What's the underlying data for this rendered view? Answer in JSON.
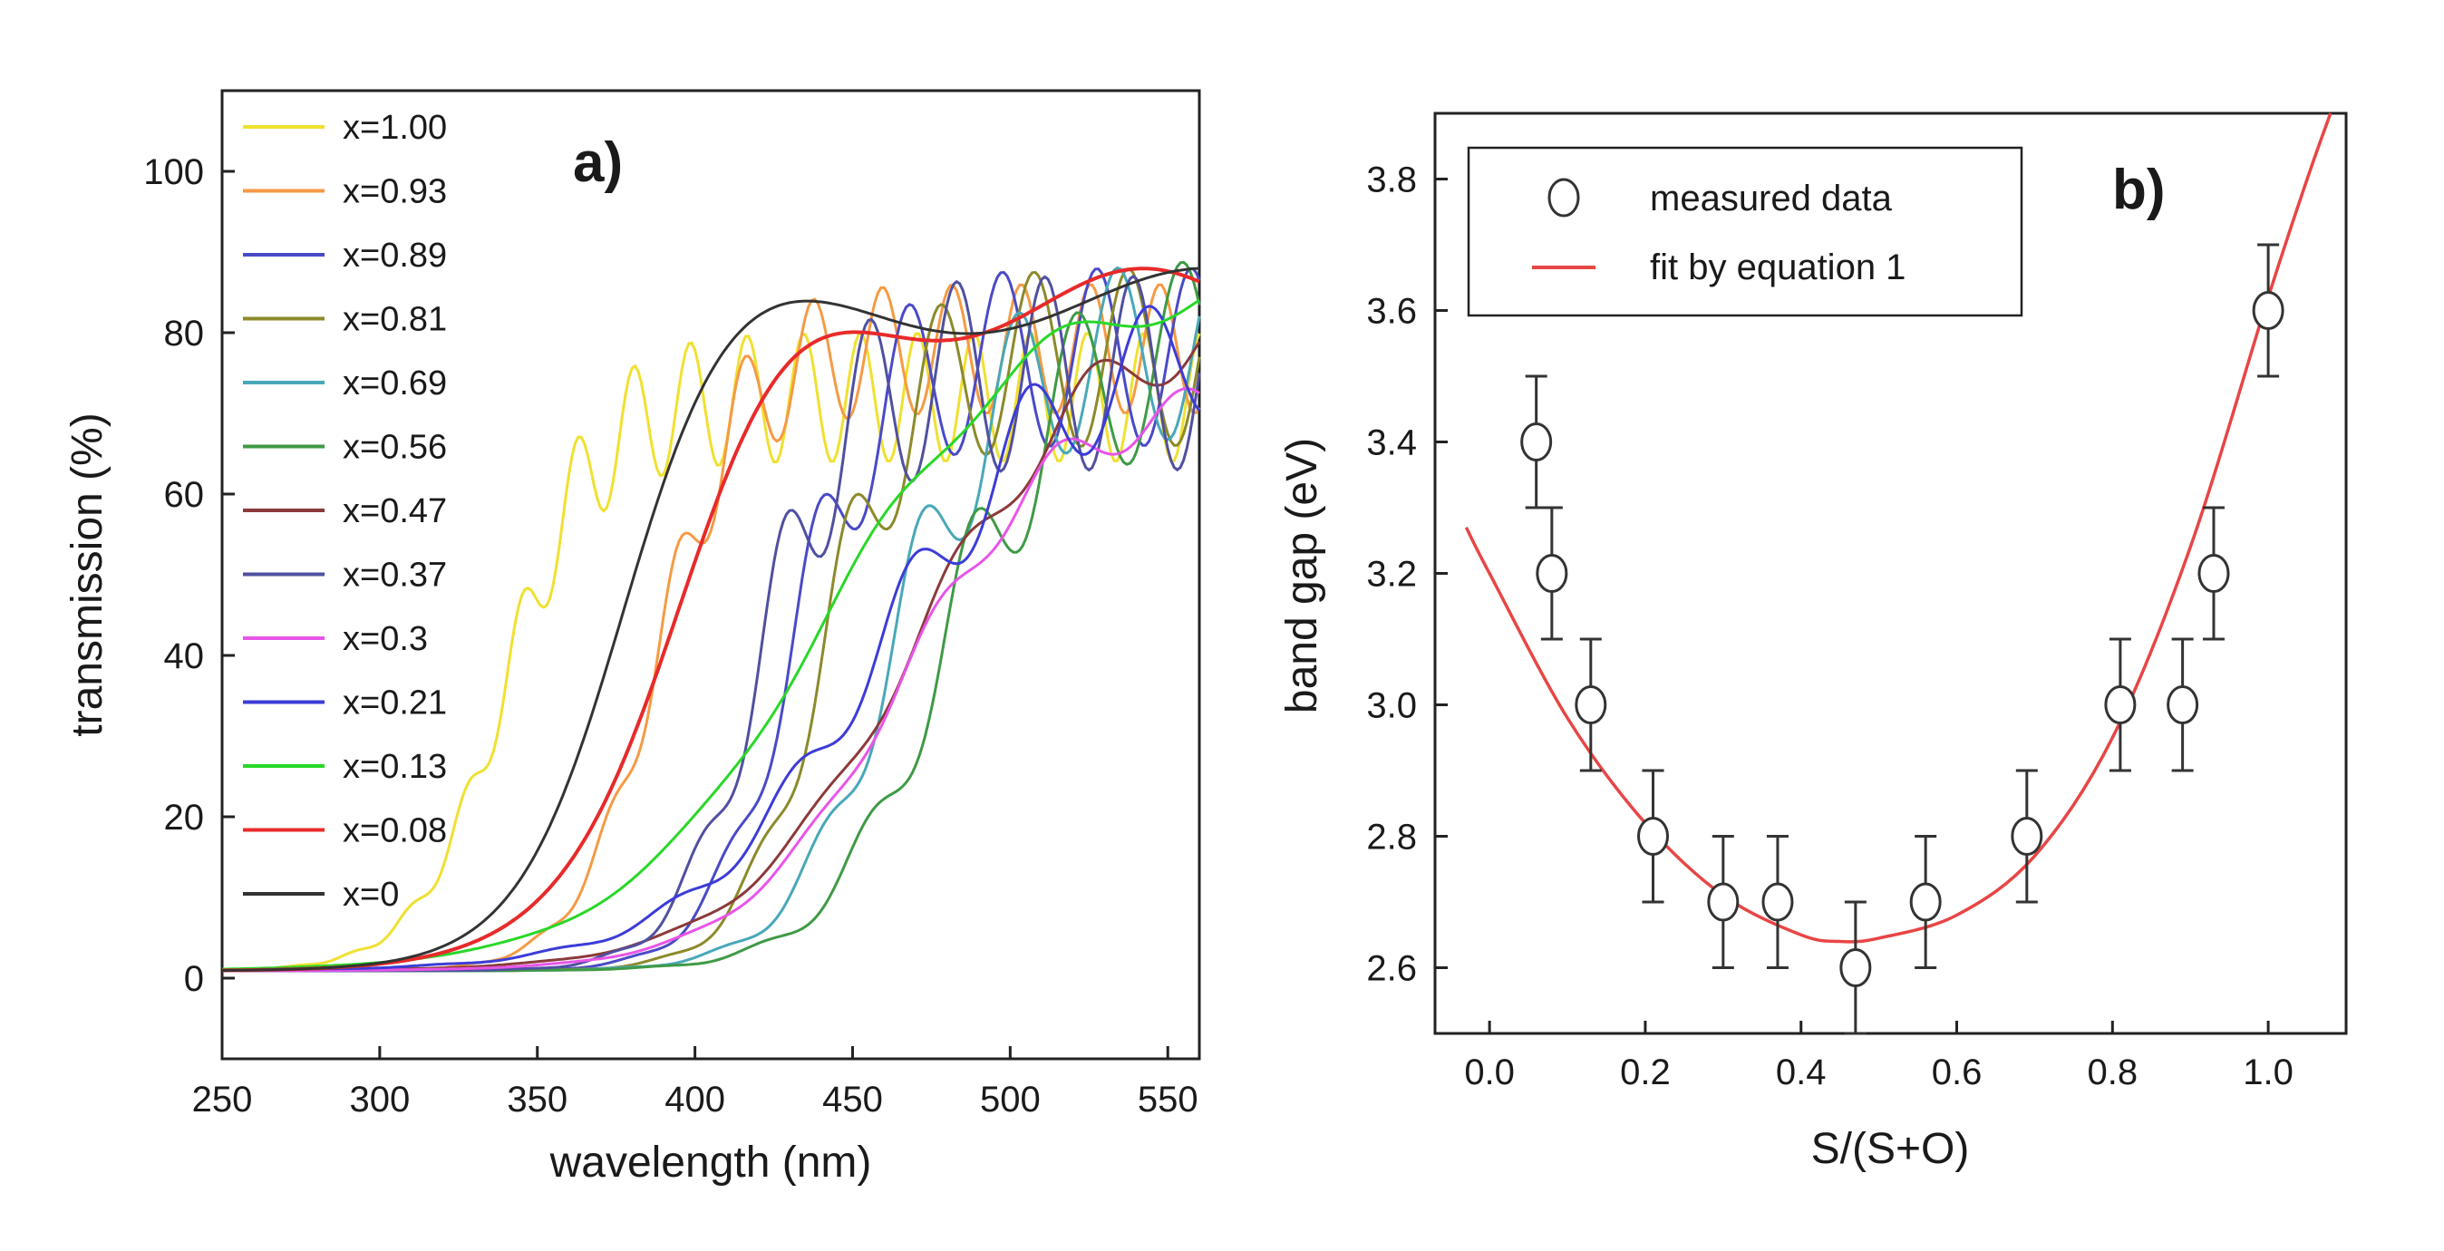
{
  "panels": {
    "a": {
      "label": "a)",
      "xlabel": "wavelength (nm)",
      "ylabel": "transmission (%)",
      "xticks": [
        "250",
        "300",
        "350",
        "400",
        "450",
        "500",
        "550"
      ],
      "yticks": [
        "0",
        "20",
        "40",
        "60",
        "80",
        "100"
      ]
    },
    "b": {
      "label": "b)",
      "xlabel": "S/(S+O)",
      "ylabel": "band gap (eV)",
      "xticks": [
        "0.0",
        "0.2",
        "0.4",
        "0.6",
        "0.8",
        "1.0"
      ],
      "yticks": [
        "2.6",
        "2.8",
        "3.0",
        "3.2",
        "3.4",
        "3.6",
        "3.8"
      ],
      "legend": {
        "measured": "measured data",
        "fit": "fit by equation 1"
      }
    }
  },
  "chart_data": [
    {
      "type": "line",
      "title": "a)",
      "xlabel": "wavelength (nm)",
      "ylabel": "transmission (%)",
      "xlim": [
        250,
        560
      ],
      "ylim": [
        -10,
        110
      ],
      "xtick_values": [
        250,
        300,
        350,
        400,
        450,
        500,
        550
      ],
      "ytick_values": [
        0,
        20,
        40,
        60,
        80,
        100
      ],
      "legend_position": "top-left",
      "series": [
        {
          "name": "x=1.00",
          "color": "#f0e030",
          "edge": 340,
          "width": 14,
          "plateau": 72,
          "fringe_amp": 8,
          "fringe_period": 18
        },
        {
          "name": "x=0.93",
          "color": "#f59a45",
          "edge": 388,
          "width": 13,
          "plateau": 78,
          "fringe_amp": 8,
          "fringe_period": 22
        },
        {
          "name": "x=0.89",
          "color": "#4a4ac8",
          "edge": 430,
          "width": 13,
          "plateau": 77,
          "fringe_amp": 11,
          "fringe_period": 30
        },
        {
          "name": "x=0.81",
          "color": "#8c8a2a",
          "edge": 440,
          "width": 13,
          "plateau": 77,
          "fringe_amp": 11,
          "fringe_period": 30
        },
        {
          "name": "x=0.69",
          "color": "#48a8b8",
          "edge": 462,
          "width": 16,
          "plateau": 78,
          "fringe_amp": 11,
          "fringe_period": 32
        },
        {
          "name": "x=0.56",
          "color": "#3f9a45",
          "edge": 478,
          "width": 18,
          "plateau": 78,
          "fringe_amp": 12,
          "fringe_period": 34
        },
        {
          "name": "x=0.47",
          "color": "#8b3a3a",
          "edge": 470,
          "width": 28,
          "plateau": 82,
          "fringe_amp": 4,
          "fringe_period": 45
        },
        {
          "name": "x=0.37",
          "color": "#5050a0",
          "edge": 420,
          "width": 13,
          "plateau": 75,
          "fringe_amp": 12,
          "fringe_period": 28
        },
        {
          "name": "x=0.3",
          "color": "#e855e8",
          "edge": 465,
          "width": 25,
          "plateau": 72,
          "fringe_amp": 3,
          "fringe_period": 40
        },
        {
          "name": "x=0.21",
          "color": "#3c3cd8",
          "edge": 458,
          "width": 30,
          "plateau": 80,
          "fringe_amp": 8,
          "fringe_period": 38
        },
        {
          "name": "x=0.13",
          "color": "#28d828",
          "edge": 440,
          "width": 32,
          "plateau": 86,
          "fringe_amp": 2,
          "fringe_period": 60
        },
        {
          "name": "x=0.08",
          "color": "#e82a2a",
          "edge": 392,
          "width": 20,
          "plateau": 84,
          "fringe_amp": 4,
          "fringe_period": 120
        },
        {
          "name": "x=0",
          "color": "#333333",
          "edge": 375,
          "width": 17,
          "plateau": 84,
          "fringe_amp": 4,
          "fringe_period": 150
        }
      ]
    },
    {
      "type": "scatter",
      "title": "b)",
      "xlabel": "S/(S+O)",
      "ylabel": "band gap (eV)",
      "xlim": [
        -0.07,
        1.1
      ],
      "ylim": [
        2.5,
        3.9
      ],
      "xtick_values": [
        0.0,
        0.2,
        0.4,
        0.6,
        0.8,
        1.0
      ],
      "ytick_values": [
        2.6,
        2.8,
        3.0,
        3.2,
        3.4,
        3.6,
        3.8
      ],
      "legend_position": "top-left",
      "series": [
        {
          "name": "measured data",
          "marker": "open-circle",
          "color": "#333333",
          "x": [
            0.06,
            0.08,
            0.13,
            0.21,
            0.3,
            0.37,
            0.47,
            0.56,
            0.69,
            0.81,
            0.89,
            0.93,
            1.0
          ],
          "y": [
            3.4,
            3.2,
            3.0,
            2.8,
            2.7,
            2.7,
            2.6,
            2.7,
            2.8,
            3.0,
            3.0,
            3.2,
            3.6
          ],
          "yerr": [
            0.1,
            0.1,
            0.1,
            0.1,
            0.1,
            0.1,
            0.1,
            0.1,
            0.1,
            0.1,
            0.1,
            0.1,
            0.1
          ]
        },
        {
          "name": "fit by equation 1",
          "type": "line",
          "color": "#e84545",
          "x": [
            -0.03,
            0.0,
            0.1,
            0.2,
            0.3,
            0.4,
            0.45,
            0.5,
            0.6,
            0.7,
            0.8,
            0.9,
            1.0,
            1.05,
            1.08
          ],
          "y": [
            3.27,
            3.2,
            2.98,
            2.82,
            2.71,
            2.65,
            2.64,
            2.645,
            2.68,
            2.77,
            2.95,
            3.24,
            3.62,
            3.8,
            3.9
          ]
        }
      ]
    }
  ]
}
